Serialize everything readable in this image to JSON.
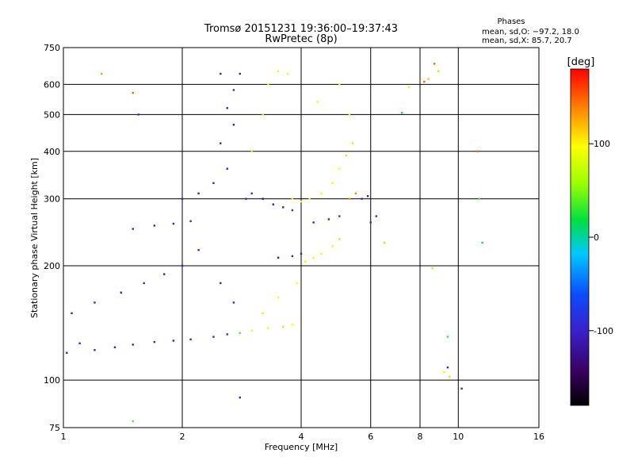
{
  "chart_data": {
    "type": "scatter",
    "title": "Tromsø 20151231 19:36:00–19:37:43",
    "subtitle": "RwPretec (8p)",
    "xlabel": "Frequency [MHz]",
    "ylabel": "Stationary phase Virtual Height [km]",
    "x_scale": "log",
    "y_scale": "log",
    "xlim": [
      1,
      16
    ],
    "ylim": [
      75,
      750
    ],
    "x_ticks": [
      1,
      2,
      4,
      6,
      8,
      10,
      16
    ],
    "y_ticks": [
      75,
      100,
      200,
      300,
      400,
      500,
      600,
      750
    ],
    "x_grid": [
      2,
      4,
      6,
      8,
      10
    ],
    "y_grid": [
      100,
      200,
      300,
      400,
      500,
      600
    ],
    "grid": true,
    "stats": {
      "heading": "Phases",
      "line_o": "mean, sd,O: −97.2, 18.0",
      "line_x": "mean, sd,X:  85.7, 20.7"
    },
    "colorbar": {
      "label": "[deg]",
      "range": [
        -180,
        180
      ],
      "ticks": [
        100,
        0,
        -100
      ],
      "palette": "rainbow (black-purple-blue-cyan-green-yellow-red)"
    },
    "series": [
      {
        "points": [
          [
            1.02,
            118,
            -95
          ],
          [
            1.1,
            125,
            -95
          ],
          [
            1.2,
            120,
            -100
          ],
          [
            1.35,
            122,
            -98
          ],
          [
            1.5,
            124,
            -100
          ],
          [
            1.7,
            126,
            -100
          ],
          [
            1.9,
            127,
            -100
          ],
          [
            2.1,
            128,
            -95
          ],
          [
            2.4,
            130,
            -90
          ],
          [
            2.6,
            132,
            -70
          ],
          [
            2.8,
            133,
            40
          ],
          [
            3.0,
            135,
            90
          ],
          [
            3.3,
            137,
            100
          ],
          [
            3.6,
            138,
            110
          ],
          [
            3.8,
            140,
            95
          ],
          [
            3.2,
            150,
            80
          ],
          [
            3.5,
            165,
            100
          ],
          [
            3.9,
            180,
            95
          ],
          [
            1.05,
            150,
            -100
          ],
          [
            1.2,
            160,
            -90
          ],
          [
            1.4,
            170,
            -100
          ],
          [
            1.6,
            180,
            -100
          ],
          [
            1.8,
            190,
            -95
          ],
          [
            2.0,
            200,
            -100
          ],
          [
            2.2,
            220,
            -95
          ],
          [
            2.5,
            180,
            -100
          ],
          [
            2.7,
            160,
            -90
          ],
          [
            1.5,
            250,
            -100
          ],
          [
            1.7,
            255,
            -100
          ],
          [
            1.9,
            258,
            -100
          ],
          [
            2.1,
            262,
            -95
          ],
          [
            2.0,
            300,
            -100
          ],
          [
            2.2,
            310,
            -100
          ],
          [
            2.4,
            330,
            -95
          ],
          [
            2.6,
            360,
            -100
          ],
          [
            2.5,
            420,
            -95
          ],
          [
            2.7,
            470,
            -100
          ],
          [
            2.6,
            520,
            -100
          ],
          [
            2.7,
            580,
            -95
          ],
          [
            2.8,
            640,
            -100
          ],
          [
            2.5,
            640,
            -100
          ],
          [
            2.9,
            300,
            -90
          ],
          [
            3.0,
            310,
            -80
          ],
          [
            3.2,
            300,
            -120
          ],
          [
            3.4,
            290,
            -110
          ],
          [
            3.6,
            285,
            -100
          ],
          [
            3.8,
            280,
            -90
          ],
          [
            3.0,
            400,
            70
          ],
          [
            3.2,
            500,
            80
          ],
          [
            3.3,
            600,
            90
          ],
          [
            3.5,
            650,
            100
          ],
          [
            3.7,
            640,
            100
          ],
          [
            3.8,
            300,
            100
          ],
          [
            4.0,
            295,
            90
          ],
          [
            4.2,
            300,
            100
          ],
          [
            4.5,
            310,
            90
          ],
          [
            4.8,
            330,
            100
          ],
          [
            5.0,
            360,
            100
          ],
          [
            5.2,
            390,
            110
          ],
          [
            5.4,
            420,
            110
          ],
          [
            5.3,
            500,
            100
          ],
          [
            5.0,
            600,
            100
          ],
          [
            4.4,
            540,
            90
          ],
          [
            3.5,
            210,
            -110
          ],
          [
            3.8,
            212,
            -100
          ],
          [
            4.0,
            215,
            -100
          ],
          [
            4.1,
            205,
            100
          ],
          [
            4.3,
            210,
            100
          ],
          [
            4.5,
            215,
            100
          ],
          [
            4.8,
            225,
            100
          ],
          [
            5.0,
            235,
            110
          ],
          [
            4.3,
            260,
            -100
          ],
          [
            4.7,
            265,
            -100
          ],
          [
            5.0,
            270,
            -95
          ],
          [
            5.3,
            300,
            130
          ],
          [
            5.5,
            310,
            140
          ],
          [
            5.7,
            300,
            -100
          ],
          [
            5.9,
            305,
            -100
          ],
          [
            6.0,
            260,
            -90
          ],
          [
            6.2,
            270,
            -80
          ],
          [
            6.5,
            230,
            60
          ],
          [
            7.2,
            505,
            20
          ],
          [
            7.5,
            590,
            80
          ],
          [
            8.2,
            610,
            150
          ],
          [
            8.4,
            620,
            120
          ],
          [
            8.7,
            680,
            150
          ],
          [
            8.9,
            650,
            60
          ],
          [
            9.2,
            105,
            100
          ],
          [
            9.5,
            102,
            110
          ],
          [
            9.4,
            108,
            -100
          ],
          [
            8.6,
            197,
            110
          ],
          [
            9.4,
            130,
            30
          ],
          [
            10.2,
            95,
            -100
          ],
          [
            11.2,
            400,
            150
          ],
          [
            11.3,
            300,
            40
          ],
          [
            11.5,
            230,
            20
          ],
          [
            1.5,
            570,
            150
          ],
          [
            1.25,
            640,
            130
          ],
          [
            1.55,
            500,
            -80
          ],
          [
            1.5,
            78,
            40
          ],
          [
            2.8,
            90,
            -100
          ]
        ]
      }
    ]
  }
}
